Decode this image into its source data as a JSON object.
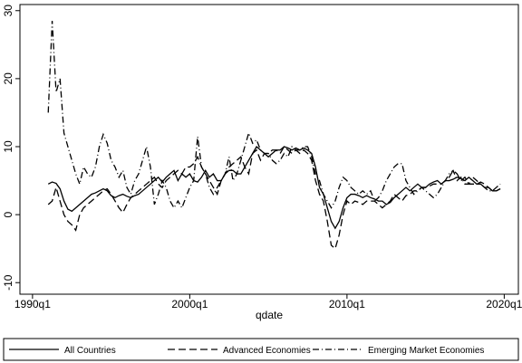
{
  "chart_data": {
    "type": "line",
    "x_label": "qdate",
    "x": [
      1991,
      1991.25,
      1991.5,
      1991.75,
      1992,
      1992.25,
      1992.5,
      1992.75,
      1993,
      1993.25,
      1993.5,
      1993.75,
      1994,
      1994.25,
      1994.5,
      1994.75,
      1995,
      1995.25,
      1995.5,
      1995.75,
      1996,
      1996.25,
      1996.5,
      1996.75,
      1997,
      1997.25,
      1997.5,
      1997.75,
      1998,
      1998.25,
      1998.5,
      1998.75,
      1999,
      1999.25,
      1999.5,
      1999.75,
      2000,
      2000.25,
      2000.5,
      2000.75,
      2001,
      2001.25,
      2001.5,
      2001.75,
      2002,
      2002.25,
      2002.5,
      2002.75,
      2003,
      2003.25,
      2003.5,
      2003.75,
      2004,
      2004.25,
      2004.5,
      2004.75,
      2005,
      2005.25,
      2005.5,
      2005.75,
      2006,
      2006.25,
      2006.5,
      2006.75,
      2007,
      2007.25,
      2007.5,
      2007.75,
      2008,
      2008.25,
      2008.5,
      2008.75,
      2009,
      2009.25,
      2009.5,
      2009.75,
      2010,
      2010.25,
      2010.5,
      2010.75,
      2011,
      2011.25,
      2011.5,
      2011.75,
      2012,
      2012.25,
      2012.5,
      2012.75,
      2013,
      2013.25,
      2013.5,
      2013.75,
      2014,
      2014.25,
      2014.5,
      2014.75,
      2015,
      2015.25,
      2015.5,
      2015.75,
      2016,
      2016.25,
      2016.5,
      2016.75,
      2017,
      2017.25,
      2017.5,
      2017.75,
      2018,
      2018.25,
      2018.5,
      2018.75,
      2019,
      2019.25,
      2019.5,
      2019.75
    ],
    "series": [
      {
        "name": "All Countries",
        "color": "#000000",
        "line_style": "solid",
        "values": [
          4.5,
          4.8,
          4.6,
          3.8,
          2,
          0.8,
          0.5,
          1,
          1.5,
          2,
          2.5,
          3,
          3.2,
          3.5,
          3.8,
          3.5,
          2.8,
          2.5,
          2.8,
          3,
          2.7,
          2.5,
          2.8,
          3,
          3.5,
          4,
          4.5,
          5,
          5.5,
          4.8,
          5.5,
          6,
          6.5,
          5,
          6,
          5.5,
          6,
          5,
          4.8,
          5.5,
          6.5,
          5.5,
          6,
          5,
          5,
          6,
          6.5,
          6.5,
          6,
          6,
          7,
          8,
          9,
          10,
          9.5,
          9,
          8.5,
          9,
          9.5,
          9.5,
          10,
          9.8,
          9.5,
          9.8,
          9.5,
          9.8,
          9.5,
          9,
          7,
          4,
          3,
          1,
          -1,
          -2,
          -1,
          1,
          2.5,
          3,
          3,
          2.8,
          2.5,
          2.8,
          2.5,
          2.3,
          2,
          2,
          1.5,
          1.8,
          2.5,
          3,
          3.5,
          4,
          3.5,
          4,
          4.5,
          4,
          4,
          4.5,
          4.8,
          5,
          4.5,
          5,
          5,
          5.2,
          5.5,
          5.3,
          5,
          5.5,
          5,
          4.5,
          4.5,
          4,
          4,
          3.5,
          3.5,
          3.8
        ]
      },
      {
        "name": "Advanced Economies",
        "color": "#000000",
        "line_style": "dashed",
        "values": [
          1.5,
          2,
          4,
          2,
          0,
          -1,
          -1.5,
          -2.3,
          0,
          1,
          1.5,
          2,
          2.5,
          3,
          3.5,
          3.8,
          3,
          2,
          1,
          0.3,
          1.5,
          2.5,
          3,
          3.5,
          4,
          4.5,
          5,
          5.5,
          4.5,
          4,
          5,
          5.5,
          6,
          6.5,
          6,
          7,
          7,
          7.5,
          8.5,
          7,
          6,
          5,
          4,
          3,
          5,
          6,
          7,
          7.5,
          8,
          8.5,
          7,
          6,
          9,
          9.5,
          8,
          9,
          9,
          9.5,
          9.5,
          9,
          10,
          9.5,
          9,
          9.5,
          9,
          9.5,
          9,
          8,
          5,
          3,
          2,
          -1,
          -4.5,
          -5,
          -3,
          0,
          2,
          1.5,
          2,
          1.8,
          1.5,
          2,
          2,
          2,
          1.5,
          1,
          1.5,
          2,
          3,
          2.5,
          2,
          2.8,
          3,
          3.5,
          3.5,
          4,
          4,
          4.2,
          4.5,
          4.5,
          4.5,
          5,
          5.5,
          6.5,
          6,
          5,
          5.5,
          4.5,
          4.5,
          4.5,
          4.8,
          4.5,
          4,
          3.5,
          3.5,
          3.8
        ]
      },
      {
        "name": "Emerging Market Economies",
        "color": "#000000",
        "line_style": "dashdot",
        "values": [
          15,
          28.5,
          18,
          20,
          12,
          10,
          8,
          6,
          4.5,
          7,
          6,
          5.5,
          7,
          10,
          11.8,
          10.5,
          8,
          7,
          5.5,
          6.5,
          4,
          3,
          5,
          6,
          8,
          10,
          7,
          1.5,
          3,
          5,
          4,
          2,
          1,
          2,
          1,
          2.5,
          4,
          5,
          11.5,
          7,
          6,
          4,
          3,
          4,
          5,
          6,
          8.5,
          5,
          6,
          8,
          10,
          12,
          10.5,
          11,
          9.5,
          9,
          9,
          8,
          7.5,
          8,
          9,
          8.5,
          10,
          9.5,
          9.5,
          10,
          10,
          8.5,
          6,
          5,
          3,
          2,
          1,
          2,
          4,
          5.5,
          5,
          4,
          3.5,
          3,
          3.5,
          3,
          3.5,
          2,
          2.5,
          3.5,
          5,
          6,
          7,
          7.5,
          7.5,
          5,
          4,
          3,
          3.5,
          4,
          3.5,
          3,
          2.5,
          3,
          4,
          5,
          6,
          6.5,
          5,
          5.5,
          4.5,
          4.5,
          5.5,
          5,
          4.5,
          4,
          3.5,
          3.5,
          4,
          4.5
        ]
      }
    ],
    "xlim": [
      1989.2,
      2020.9
    ],
    "xticks": [
      {
        "value": 1990,
        "label": "1990q1"
      },
      {
        "value": 2000,
        "label": "2000q1"
      },
      {
        "value": 2010,
        "label": "2010q1"
      },
      {
        "value": 2020,
        "label": "2020q1"
      }
    ],
    "ylim": [
      -11.7,
      30.9
    ],
    "yticks": [
      -10,
      0,
      10,
      20,
      30
    ],
    "legend": "bottom"
  }
}
